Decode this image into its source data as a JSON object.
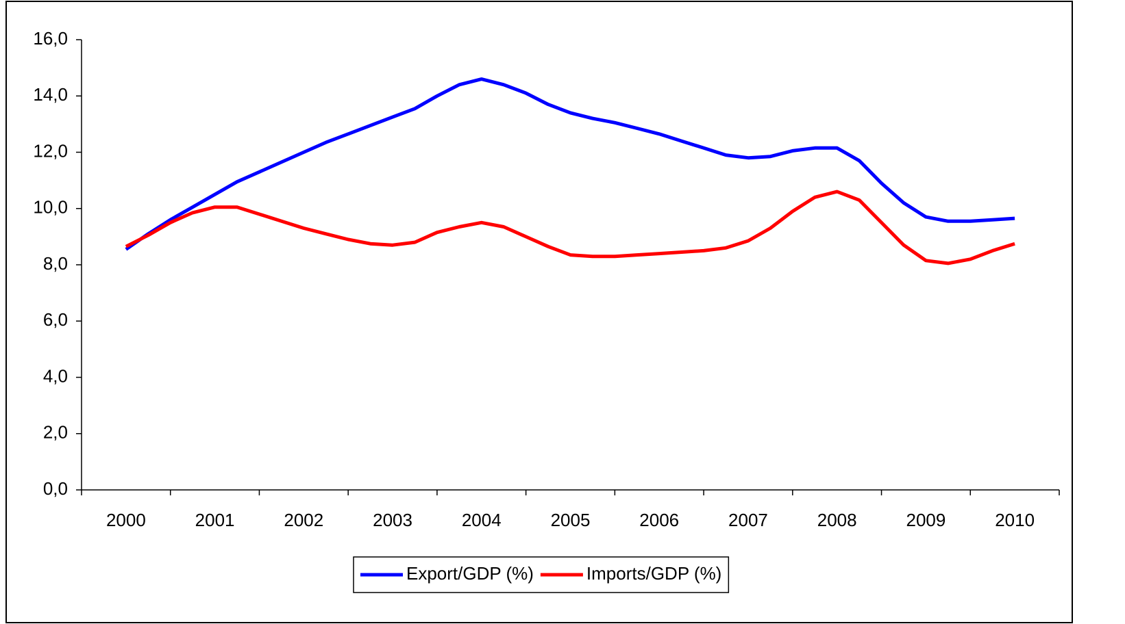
{
  "chart_data": {
    "type": "line",
    "categories": [
      "2000",
      null,
      null,
      null,
      "2001",
      null,
      null,
      null,
      "2002",
      null,
      null,
      null,
      "2003",
      null,
      null,
      null,
      "2004",
      null,
      null,
      null,
      "2005",
      null,
      null,
      null,
      "2006",
      null,
      null,
      null,
      "2007",
      null,
      null,
      null,
      "2008",
      null,
      null,
      null,
      "2009",
      null,
      null,
      null,
      "2010"
    ],
    "series": [
      {
        "name": "Export/GDP (%)",
        "color": "#0000ff",
        "values": [
          8.55,
          9.1,
          9.6,
          10.05,
          10.5,
          10.95,
          11.3,
          11.65,
          12.0,
          12.35,
          12.65,
          12.95,
          13.25,
          13.55,
          14.0,
          14.4,
          14.6,
          14.4,
          14.1,
          13.7,
          13.4,
          13.2,
          13.05,
          12.85,
          12.65,
          12.4,
          12.15,
          11.9,
          11.8,
          11.85,
          12.05,
          12.15,
          12.15,
          11.7,
          10.9,
          10.2,
          9.7,
          9.55,
          9.55,
          9.6,
          9.65
        ]
      },
      {
        "name": "Imports/GDP (%)",
        "color": "#ff0000",
        "values": [
          8.65,
          9.05,
          9.5,
          9.85,
          10.05,
          10.05,
          9.8,
          9.55,
          9.3,
          9.1,
          8.9,
          8.75,
          8.7,
          8.8,
          9.15,
          9.35,
          9.5,
          9.35,
          9.0,
          8.65,
          8.35,
          8.3,
          8.3,
          8.35,
          8.4,
          8.45,
          8.5,
          8.6,
          8.85,
          9.3,
          9.9,
          10.4,
          10.6,
          10.3,
          9.5,
          8.7,
          8.15,
          8.05,
          8.2,
          8.5,
          8.75
        ]
      }
    ],
    "ylim": [
      0,
      16
    ],
    "yticks": [
      {
        "value": 0,
        "label": "0,0"
      },
      {
        "value": 2,
        "label": "2,0"
      },
      {
        "value": 4,
        "label": "4,0"
      },
      {
        "value": 6,
        "label": "6,0"
      },
      {
        "value": 8,
        "label": "8,0"
      },
      {
        "value": 10,
        "label": "10,0"
      },
      {
        "value": 12,
        "label": "12,0"
      },
      {
        "value": 14,
        "label": "14,0"
      },
      {
        "value": 16,
        "label": "16,0"
      }
    ],
    "legend": "bottom"
  }
}
